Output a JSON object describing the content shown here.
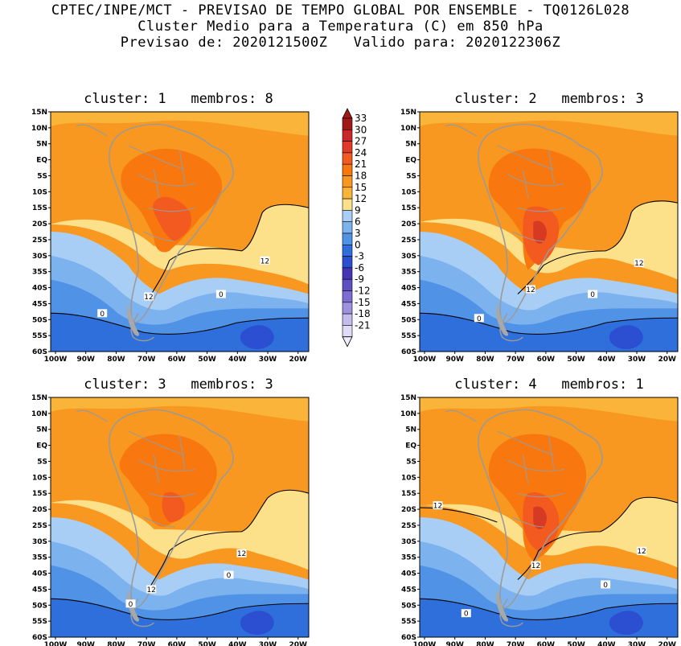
{
  "header": {
    "line1": "CPTEC/INPE/MCT - PREVISAO DE TEMPO GLOBAL POR ENSEMBLE - TQ0126L028",
    "line2": "Cluster Medio para a Temperatura (C) em 850 hPa",
    "line3": "Previsao de: 2020121500Z   Valido para: 2020122306Z"
  },
  "lat_ticks": [
    "15N",
    "10N",
    "5N",
    "EQ",
    "5S",
    "10S",
    "15S",
    "20S",
    "25S",
    "30S",
    "35S",
    "40S",
    "45S",
    "50S",
    "55S",
    "60S"
  ],
  "lon_ticks": [
    "100W",
    "90W",
    "80W",
    "70W",
    "60W",
    "50W",
    "40W",
    "30W",
    "20W"
  ],
  "colorbar": {
    "labels": [
      "33",
      "30",
      "27",
      "24",
      "21",
      "18",
      "15",
      "12",
      "9",
      "6",
      "3",
      "0",
      "-3",
      "-6",
      "-9",
      "-12",
      "-15",
      "-18",
      "-21"
    ],
    "colors": [
      "#a01818",
      "#c82828",
      "#e23a2a",
      "#f25a20",
      "#f8780f",
      "#f89820",
      "#fbb43a",
      "#fce08a",
      "#a9cef5",
      "#7cb3ef",
      "#4f92e6",
      "#2e6fdb",
      "#2b4fd0",
      "#4535b5",
      "#5e50c4",
      "#7b6dd3",
      "#9d91e0",
      "#c3bcef",
      "#e0dbf7"
    ]
  },
  "panels": [
    {
      "title": "cluster: 1   membros: 8",
      "cluster": 1,
      "membros": 8,
      "contour_labels": [
        "12",
        "12",
        "0",
        "0"
      ]
    },
    {
      "title": "cluster: 2   membros: 3",
      "cluster": 2,
      "membros": 3,
      "contour_labels": [
        "12",
        "12",
        "0",
        "0"
      ]
    },
    {
      "title": "cluster: 3   membros: 3",
      "cluster": 3,
      "membros": 3,
      "contour_labels": [
        "12",
        "12",
        "0",
        "0"
      ]
    },
    {
      "title": "cluster: 4   membros: 1",
      "cluster": 4,
      "membros": 1,
      "contour_labels": [
        "12",
        "12",
        "12",
        "0",
        "0"
      ]
    }
  ]
}
